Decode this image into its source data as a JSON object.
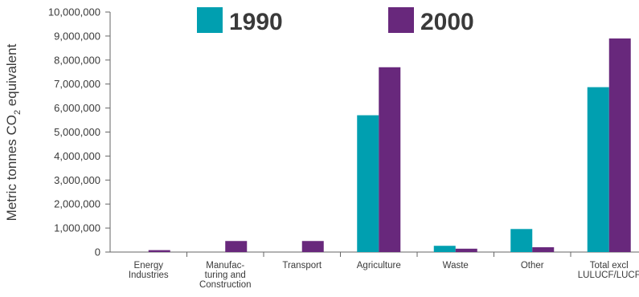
{
  "chart_data": {
    "type": "bar",
    "ylabel_main": "Metric tonnes CO",
    "ylabel_sub": "2",
    "ylabel_tail": " equivalent",
    "ylim": [
      0,
      10000000
    ],
    "yticks": [
      0,
      1000000,
      2000000,
      3000000,
      4000000,
      5000000,
      6000000,
      7000000,
      8000000,
      9000000,
      10000000
    ],
    "ytick_labels": [
      "0",
      "1,000,000",
      "2,000,000",
      "3,000,000",
      "4,000,000",
      "5,000,000",
      "6,000,000",
      "7,000,000",
      "8,000,000",
      "9,000,000",
      "10,000,000"
    ],
    "categories": [
      [
        "Energy",
        "Industries"
      ],
      [
        "Manufac-",
        "turing and",
        "Construction"
      ],
      [
        "Transport"
      ],
      [
        "Agriculture"
      ],
      [
        "Waste"
      ],
      [
        "Other"
      ],
      [
        "Total excl",
        "LULUCF/LUCF"
      ]
    ],
    "series": [
      {
        "name": "1990",
        "color": "#009fb0",
        "values": [
          0,
          0,
          0,
          5700000,
          260000,
          960000,
          6870000
        ]
      },
      {
        "name": "2000",
        "color": "#68287c",
        "values": [
          80000,
          460000,
          460000,
          7700000,
          140000,
          200000,
          8900000
        ]
      }
    ],
    "legend_position": "top",
    "grid": false
  }
}
